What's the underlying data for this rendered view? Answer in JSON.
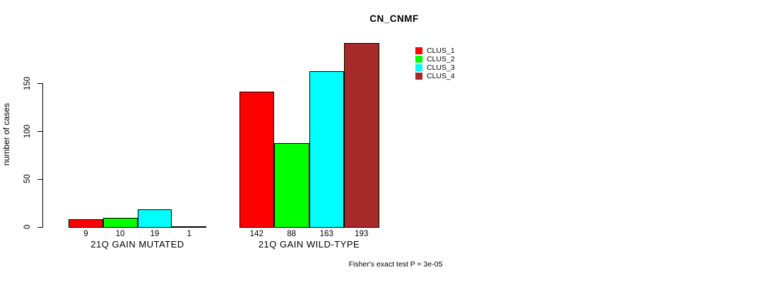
{
  "chart_data": {
    "type": "bar",
    "title": "CN_CNMF",
    "ylabel": "number of cases",
    "xlabel": "",
    "yticks": [
      0,
      50,
      100,
      150
    ],
    "ylim": [
      0,
      193
    ],
    "grid": false,
    "bar_labels_shown": true,
    "legend_position": "top-right",
    "categories": [
      "21Q GAIN MUTATED",
      "21Q GAIN WILD-TYPE"
    ],
    "series": [
      {
        "name": "CLUS_1",
        "color": "#FF0000",
        "values": [
          9,
          142
        ]
      },
      {
        "name": "CLUS_2",
        "color": "#00FF00",
        "values": [
          10,
          88
        ]
      },
      {
        "name": "CLUS_3",
        "color": "#00FFFF",
        "values": [
          19,
          163
        ]
      },
      {
        "name": "CLUS_4",
        "color": "#A52A2A",
        "values": [
          1,
          193
        ]
      }
    ],
    "annotation": "Fisher's exact test P = 3e-05",
    "colors": {
      "axis": "#000000",
      "bar_border": "#000000",
      "background": "#FFFFFF"
    }
  }
}
